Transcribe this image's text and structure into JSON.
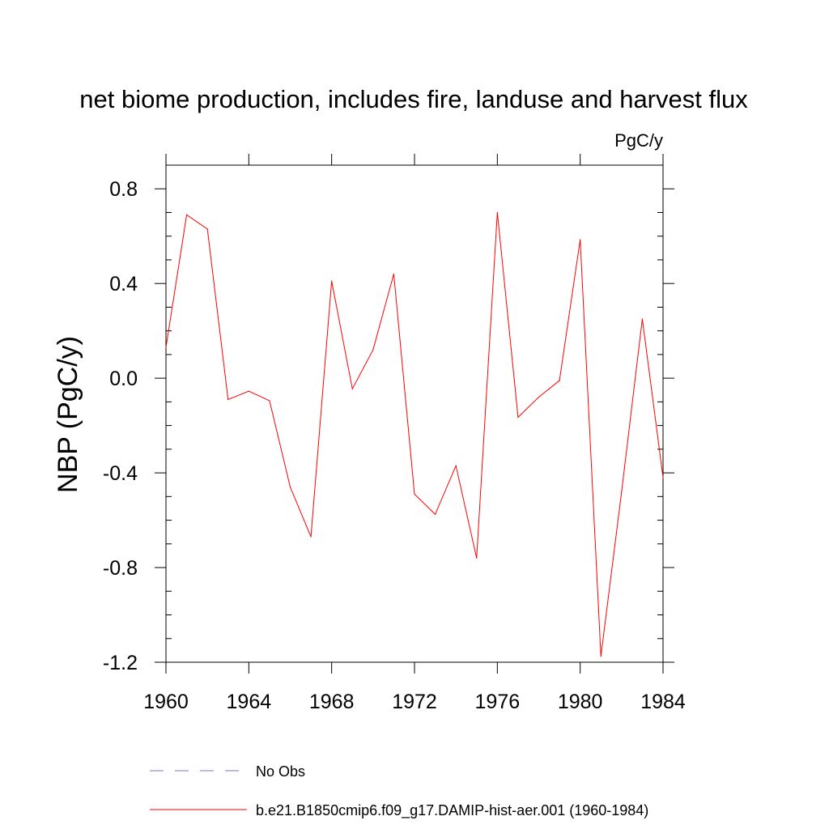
{
  "chart_data": {
    "type": "line",
    "title": "net biome production, includes fire, landuse and harvest flux",
    "units_label": "PgC/y",
    "ylabel": "NBP  (PgC/y)",
    "xlabel": "",
    "xlim": [
      1960,
      1984
    ],
    "ylim": [
      -1.2,
      0.9
    ],
    "x_ticks": [
      1960,
      1964,
      1968,
      1972,
      1976,
      1980,
      1984
    ],
    "x_tick_labels": [
      "1960",
      "1964",
      "1968",
      "1972",
      "1976",
      "1980",
      "1984"
    ],
    "y_ticks": [
      -1.2,
      -0.8,
      -0.4,
      0.0,
      0.4,
      0.8
    ],
    "y_tick_labels": [
      "-1.2",
      "-0.8",
      "-0.4",
      "0.0",
      "0.4",
      "0.8"
    ],
    "grid": false,
    "legend_position": "bottom",
    "x": [
      1960,
      1961,
      1962,
      1963,
      1964,
      1965,
      1966,
      1967,
      1968,
      1969,
      1970,
      1971,
      1972,
      1973,
      1974,
      1975,
      1976,
      1977,
      1978,
      1979,
      1980,
      1981,
      1982,
      1983,
      1984
    ],
    "series": [
      {
        "name": "b.e21.B1850cmip6.f09_g17.DAMIP-hist-aer.001 (1960-1984)",
        "color": "#ff0000",
        "style": "solid",
        "values": [
          0.13,
          0.69,
          0.63,
          -0.09,
          -0.055,
          -0.095,
          -0.46,
          -0.67,
          0.41,
          -0.045,
          0.12,
          0.44,
          -0.49,
          -0.575,
          -0.37,
          -0.76,
          0.7,
          -0.165,
          -0.08,
          -0.01,
          0.585,
          -1.175,
          -0.48,
          0.25,
          -0.42
        ]
      }
    ],
    "legend": [
      {
        "label": "No Obs",
        "color": "#7777cc",
        "style": "dashed"
      },
      {
        "label": "b.e21.B1850cmip6.f09_g17.DAMIP-hist-aer.001 (1960-1984)",
        "color": "#ff0000",
        "style": "solid"
      }
    ]
  }
}
